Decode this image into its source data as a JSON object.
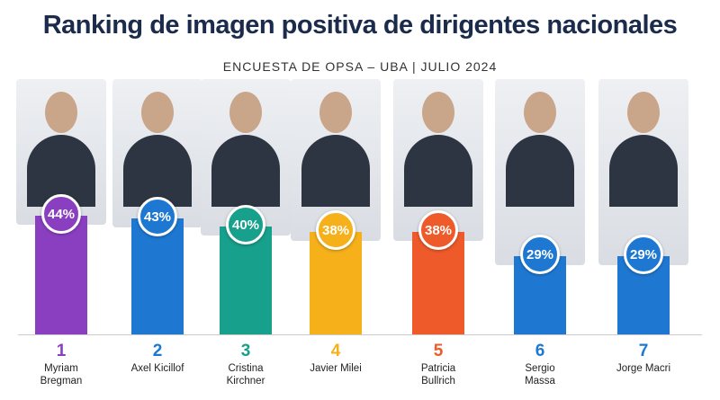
{
  "chart_data": {
    "type": "bar",
    "title": "Ranking de imagen positiva de dirigentes nacionales",
    "subtitle": "ENCUESTA DE OPSA – UBA | JULIO 2024",
    "categories": [
      "Myriam Bregman",
      "Axel Kicillof",
      "Cristina Kirchner",
      "Javier Milei",
      "Patricia Bullrich",
      "Sergio Massa",
      "Jorge Macri"
    ],
    "ranks": [
      1,
      2,
      3,
      4,
      5,
      6,
      7
    ],
    "values": [
      44,
      43,
      40,
      38,
      38,
      29,
      29
    ],
    "value_labels": [
      "44%",
      "43%",
      "40%",
      "38%",
      "38%",
      "29%",
      "29%"
    ],
    "colors": [
      "#8a3fc0",
      "#1e78d2",
      "#17a08c",
      "#f5b01a",
      "#ee5a2a",
      "#1e78d2",
      "#1e78d2"
    ]
  }
}
